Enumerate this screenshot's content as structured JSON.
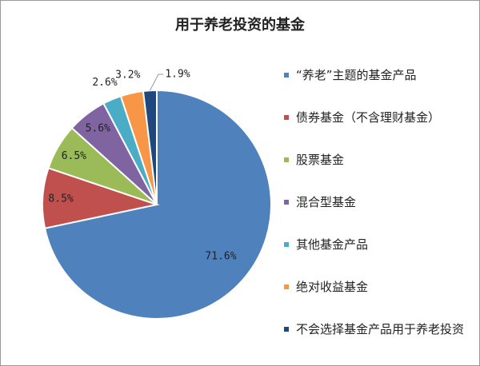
{
  "chart_data": {
    "type": "pie",
    "title": "用于养老投资的基金",
    "categories": [
      "“养老”主题的基金产品",
      "债券基金（不含理财基金）",
      "股票基金",
      "混合型基金",
      "其他基金产品",
      "绝对收益基金",
      "不会选择基金产品用于养老投资"
    ],
    "values": [
      71.6,
      8.5,
      6.5,
      5.6,
      2.6,
      3.2,
      1.9
    ],
    "value_labels": [
      "71.6%",
      "8.5%",
      "6.5%",
      "5.6%",
      "2.6%",
      "3.2%",
      "1.9%"
    ],
    "colors": [
      "#4f81bd",
      "#c0504d",
      "#9bbb59",
      "#8064a2",
      "#4bacc6",
      "#f79646",
      "#1f497d"
    ],
    "legend": "right"
  }
}
